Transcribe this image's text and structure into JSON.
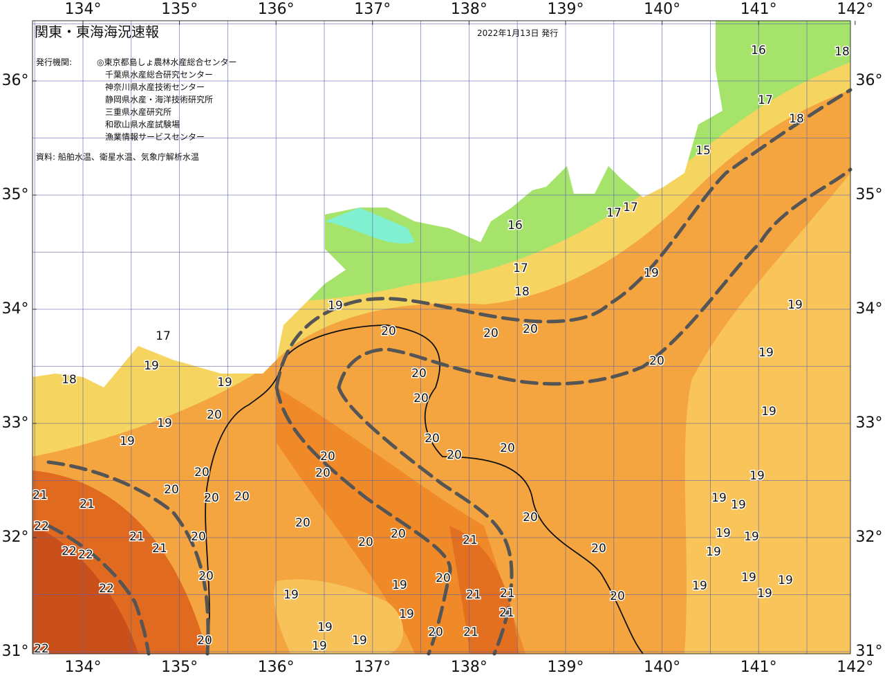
{
  "header": {
    "title": "関東・東海海況速報",
    "issue_date": "2022年1月13日 発行",
    "issuer_label": "発行機関:",
    "issuers": [
      "◎東京都島しょ農林水産総合センター",
      "千葉県水産総合研究センター",
      "神奈川県水産技術センター",
      "静岡県水産・海洋技術研究所",
      "三重県水産研究所",
      "和歌山県水産試験場",
      "漁業情報サービスセンター"
    ],
    "source": "資料: 船舶水温、衛星水温、気象庁解析水温"
  },
  "map": {
    "lon_ticks": [
      {
        "value": 134,
        "label": "134°"
      },
      {
        "value": 135,
        "label": "135°"
      },
      {
        "value": 136,
        "label": "136°"
      },
      {
        "value": 137,
        "label": "137°"
      },
      {
        "value": 138,
        "label": "138°"
      },
      {
        "value": 139,
        "label": "139°"
      },
      {
        "value": 140,
        "label": "140°"
      },
      {
        "value": 141,
        "label": "141°"
      },
      {
        "value": 142,
        "label": "142°"
      }
    ],
    "lat_ticks": [
      {
        "value": 31,
        "label": "31°"
      },
      {
        "value": 32,
        "label": "32°"
      },
      {
        "value": 33,
        "label": "33°"
      },
      {
        "value": 34,
        "label": "34°"
      },
      {
        "value": 35,
        "label": "35°"
      },
      {
        "value": 36,
        "label": "36°"
      }
    ],
    "contour_labels": [
      16,
      18,
      17,
      18,
      15,
      16,
      17,
      17,
      17,
      18,
      19,
      19,
      19,
      17,
      20,
      20,
      20,
      19,
      20,
      19,
      18,
      19,
      20,
      20,
      19,
      20,
      19,
      19,
      20,
      20,
      20,
      20,
      20,
      20,
      19,
      21,
      21,
      20,
      20,
      20,
      19,
      19,
      20,
      20,
      22,
      20,
      21,
      19,
      19,
      20,
      20,
      21,
      21,
      20,
      22,
      22,
      19,
      20,
      20,
      19,
      19,
      22,
      19,
      19,
      19,
      21,
      21,
      19,
      20,
      21,
      19,
      19,
      20,
      19,
      20,
      21,
      19,
      22
    ]
  }
}
